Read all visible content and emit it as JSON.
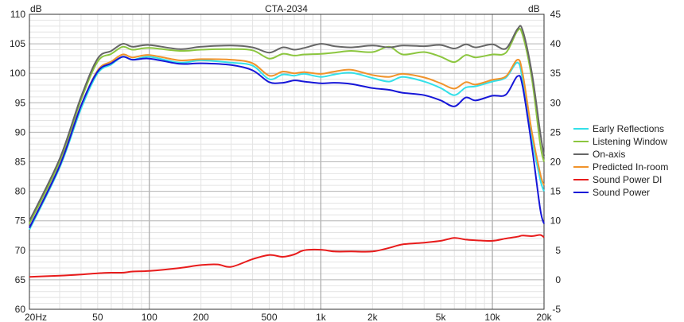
{
  "chart_data": {
    "type": "line",
    "title": "CTA-2034",
    "left_axis_unit": "dB",
    "right_axis_unit": "dB",
    "x_scale": "log",
    "xlim": [
      20,
      20000
    ],
    "ylim_left": [
      60,
      110
    ],
    "ylim_right": [
      -5,
      45
    ],
    "x_ticks": [
      {
        "value": 20,
        "label": "20Hz"
      },
      {
        "value": 50,
        "label": "50"
      },
      {
        "value": 100,
        "label": "100"
      },
      {
        "value": 200,
        "label": "200"
      },
      {
        "value": 500,
        "label": "500"
      },
      {
        "value": 1000,
        "label": "1k"
      },
      {
        "value": 2000,
        "label": "2k"
      },
      {
        "value": 5000,
        "label": "5k"
      },
      {
        "value": 10000,
        "label": "10k"
      },
      {
        "value": 20000,
        "label": "20k"
      }
    ],
    "y_ticks_left": [
      60,
      65,
      70,
      75,
      80,
      85,
      90,
      95,
      100,
      105,
      110
    ],
    "y_ticks_right": [
      -5,
      0,
      5,
      10,
      15,
      20,
      25,
      30,
      35,
      40,
      45
    ],
    "grid": true,
    "legend_position": "right",
    "series": [
      {
        "name": "Early Reflections",
        "color": "#33e0e8",
        "axis": "left",
        "x": [
          20,
          30,
          40,
          50,
          60,
          70,
          80,
          100,
          150,
          200,
          300,
          400,
          500,
          600,
          700,
          800,
          1000,
          1200,
          1500,
          2000,
          2500,
          3000,
          4000,
          5000,
          6000,
          7000,
          8000,
          10000,
          12000,
          14000,
          15000,
          17000,
          19000,
          20000
        ],
        "y": [
          73.5,
          84,
          94,
          100,
          101.5,
          102.8,
          102.3,
          102.8,
          101.8,
          102.2,
          101.8,
          101.3,
          99,
          99.8,
          99.6,
          99.9,
          99.4,
          99.8,
          100.1,
          99.2,
          98.6,
          99.4,
          98.6,
          97.5,
          96.3,
          97.6,
          97.8,
          98.6,
          99.3,
          101.8,
          98.9,
          89,
          82,
          80
        ]
      },
      {
        "name": "Listening Window",
        "color": "#8cc63f",
        "axis": "left",
        "x": [
          20,
          30,
          40,
          50,
          60,
          70,
          80,
          100,
          150,
          200,
          300,
          400,
          500,
          600,
          700,
          800,
          1000,
          1200,
          1500,
          2000,
          2500,
          3000,
          4000,
          5000,
          6000,
          7000,
          8000,
          10000,
          12000,
          14000,
          15000,
          17000,
          19000,
          20000
        ],
        "y": [
          74.5,
          85,
          95.5,
          102,
          103.3,
          104.5,
          104,
          104.3,
          103.8,
          104,
          104.1,
          103.9,
          102.5,
          103.3,
          103,
          103.2,
          103.3,
          103.5,
          103.8,
          103.6,
          104.5,
          103.2,
          103.6,
          102.8,
          101.9,
          103.1,
          102.7,
          103.2,
          103.5,
          107.2,
          106.5,
          99,
          88,
          85
        ]
      },
      {
        "name": "On-axis",
        "color": "#666666",
        "axis": "left",
        "x": [
          20,
          30,
          40,
          50,
          60,
          70,
          80,
          100,
          150,
          200,
          300,
          400,
          500,
          600,
          700,
          800,
          1000,
          1200,
          1500,
          2000,
          2500,
          3000,
          4000,
          5000,
          6000,
          7000,
          8000,
          10000,
          12000,
          14000,
          15000,
          17000,
          19000,
          20000
        ],
        "y": [
          75,
          85.5,
          96,
          102.5,
          103.8,
          105,
          104.5,
          104.8,
          104.1,
          104.5,
          104.7,
          104.4,
          103.5,
          104.4,
          104,
          104.3,
          105,
          104.6,
          104.4,
          104.7,
          104.4,
          104.7,
          104.6,
          104.8,
          104.2,
          104.9,
          104.4,
          104.9,
          104.2,
          107.5,
          107.3,
          100,
          90,
          86
        ]
      },
      {
        "name": "Predicted In-room",
        "color": "#f0932b",
        "axis": "left",
        "x": [
          20,
          30,
          40,
          50,
          60,
          70,
          80,
          100,
          150,
          200,
          300,
          400,
          500,
          600,
          700,
          800,
          1000,
          1200,
          1500,
          2000,
          2500,
          3000,
          4000,
          5000,
          6000,
          7000,
          8000,
          10000,
          12000,
          14000,
          15000,
          17000,
          19000,
          20000
        ],
        "y": [
          73.8,
          84.3,
          94.5,
          100.5,
          102,
          103.2,
          102.7,
          103.1,
          102.2,
          102.4,
          102.3,
          101.7,
          99.6,
          100.3,
          100,
          100.2,
          99.9,
          100.3,
          100.6,
          99.7,
          99.4,
          99.9,
          99.3,
          98.3,
          97.4,
          98.5,
          98.1,
          98.9,
          99.5,
          102.3,
          100,
          90,
          83,
          81
        ]
      },
      {
        "name": "Sound Power DI",
        "color": "#e81c1c",
        "axis": "right",
        "x": [
          20,
          30,
          40,
          50,
          60,
          70,
          80,
          100,
          150,
          200,
          250,
          300,
          400,
          500,
          600,
          700,
          800,
          1000,
          1200,
          1500,
          2000,
          2500,
          3000,
          4000,
          5000,
          6000,
          7000,
          8000,
          10000,
          12000,
          14000,
          15000,
          17000,
          19000,
          20000
        ],
        "y": [
          0.5,
          0.7,
          0.9,
          1.1,
          1.2,
          1.2,
          1.4,
          1.5,
          2.0,
          2.5,
          2.6,
          2.2,
          3.5,
          4.2,
          3.9,
          4.3,
          5,
          5.1,
          4.8,
          4.8,
          4.8,
          5.4,
          6.0,
          6.3,
          6.6,
          7.1,
          6.8,
          6.7,
          6.6,
          7.0,
          7.3,
          7.5,
          7.4,
          7.6,
          7.2
        ]
      },
      {
        "name": "Sound Power",
        "color": "#1616d8",
        "axis": "left",
        "x": [
          20,
          30,
          40,
          50,
          60,
          70,
          80,
          100,
          150,
          200,
          300,
          400,
          500,
          600,
          700,
          800,
          1000,
          1200,
          1500,
          2000,
          2500,
          3000,
          4000,
          5000,
          6000,
          7000,
          8000,
          10000,
          12000,
          14000,
          15000,
          17000,
          19000,
          20000
        ],
        "y": [
          73.8,
          84.3,
          94.5,
          100.3,
          101.7,
          102.8,
          102.3,
          102.5,
          101.6,
          101.7,
          101.4,
          100.5,
          98.5,
          98.4,
          98.8,
          98.6,
          98.3,
          98.4,
          98.2,
          97.5,
          97.2,
          96.7,
          96.3,
          95.4,
          94.4,
          95.9,
          95.4,
          96.2,
          96.4,
          99.5,
          97.8,
          87.5,
          77,
          74.5
        ]
      }
    ]
  }
}
